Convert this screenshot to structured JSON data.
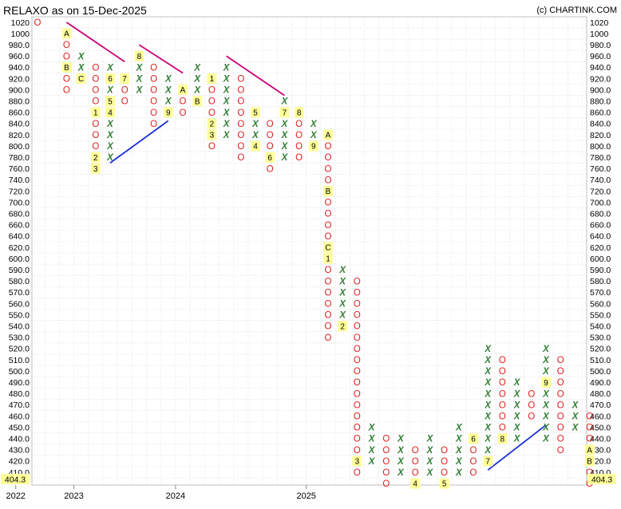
{
  "chart_data": {
    "type": "point-and-figure",
    "title": "RELAXO as on 15-Dec-2025",
    "credit": "(c) CHARTINK.COM",
    "last_price_label": "404.3",
    "y_levels": [
      1020,
      1000,
      980,
      960,
      940,
      920,
      900,
      880,
      860,
      840,
      820,
      800,
      780,
      760,
      740,
      720,
      700,
      680,
      660,
      640,
      620,
      600,
      590,
      580,
      570,
      560,
      550,
      540,
      530,
      520,
      510,
      500,
      490,
      480,
      470,
      460,
      450,
      440,
      430,
      420,
      410
    ],
    "y_labels": [
      "1020",
      "1000",
      "980.0",
      "960.0",
      "940.0",
      "920.0",
      "900.0",
      "880.0",
      "860.0",
      "840.0",
      "820.0",
      "800.0",
      "780.0",
      "760.0",
      "740.0",
      "720.0",
      "700.0",
      "680.0",
      "660.0",
      "640.0",
      "620.0",
      "600.0",
      "590.0",
      "580.0",
      "570.0",
      "560.0",
      "550.0",
      "540.0",
      "530.0",
      "520.0",
      "510.0",
      "500.0",
      "490.0",
      "480.0",
      "470.0",
      "460.0",
      "450.0",
      "440.0",
      "430.0",
      "420.0",
      "410.0"
    ],
    "x_labels": [
      {
        "label": "2022",
        "col": -1
      },
      {
        "label": "2023",
        "col": 3
      },
      {
        "label": "2024",
        "col": 10
      },
      {
        "label": "2025",
        "col": 19
      }
    ],
    "columns": [
      {
        "col": 0,
        "type": "O",
        "cells": [
          [
            1020,
            "O"
          ]
        ]
      },
      {
        "col": 2,
        "type": "O",
        "cells": [
          [
            1000,
            "A"
          ],
          [
            980,
            "O"
          ],
          [
            960,
            "O"
          ],
          [
            940,
            "B"
          ],
          [
            920,
            "O"
          ],
          [
            900,
            "O"
          ]
        ]
      },
      {
        "col": 3,
        "type": "X",
        "cells": [
          [
            940,
            "X"
          ],
          [
            960,
            "X"
          ],
          [
            920,
            "C"
          ]
        ]
      },
      {
        "col": 4,
        "type": "O",
        "cells": [
          [
            940,
            "O"
          ],
          [
            920,
            "O"
          ],
          [
            900,
            "O"
          ],
          [
            880,
            "O"
          ],
          [
            860,
            "1"
          ],
          [
            840,
            "O"
          ],
          [
            820,
            "O"
          ],
          [
            800,
            "O"
          ],
          [
            780,
            "2"
          ],
          [
            760,
            "3"
          ]
        ]
      },
      {
        "col": 5,
        "type": "X",
        "cells": [
          [
            780,
            "X"
          ],
          [
            800,
            "X"
          ],
          [
            820,
            "X"
          ],
          [
            840,
            "X"
          ],
          [
            860,
            "4"
          ],
          [
            880,
            "5"
          ],
          [
            900,
            "X"
          ],
          [
            920,
            "6"
          ],
          [
            940,
            "X"
          ]
        ]
      },
      {
        "col": 6,
        "type": "O",
        "cells": [
          [
            920,
            "7"
          ],
          [
            900,
            "O"
          ],
          [
            880,
            "O"
          ]
        ]
      },
      {
        "col": 7,
        "type": "X",
        "cells": [
          [
            900,
            "X"
          ],
          [
            920,
            "X"
          ],
          [
            940,
            "X"
          ],
          [
            960,
            "8"
          ]
        ]
      },
      {
        "col": 8,
        "type": "O",
        "cells": [
          [
            940,
            "O"
          ],
          [
            920,
            "O"
          ],
          [
            900,
            "O"
          ],
          [
            880,
            "O"
          ],
          [
            860,
            "O"
          ],
          [
            840,
            "O"
          ]
        ]
      },
      {
        "col": 9,
        "type": "X",
        "cells": [
          [
            860,
            "9"
          ],
          [
            880,
            "X"
          ],
          [
            900,
            "X"
          ],
          [
            920,
            "X"
          ]
        ]
      },
      {
        "col": 10,
        "type": "O",
        "cells": [
          [
            900,
            "A"
          ],
          [
            880,
            "O"
          ],
          [
            860,
            "O"
          ]
        ]
      },
      {
        "col": 11,
        "type": "X",
        "cells": [
          [
            880,
            "B"
          ],
          [
            900,
            "X"
          ],
          [
            920,
            "X"
          ],
          [
            940,
            "X"
          ]
        ]
      },
      {
        "col": 12,
        "type": "O",
        "cells": [
          [
            920,
            "1"
          ],
          [
            900,
            "O"
          ],
          [
            880,
            "O"
          ],
          [
            860,
            "O"
          ],
          [
            840,
            "2"
          ],
          [
            820,
            "3"
          ],
          [
            800,
            "O"
          ]
        ]
      },
      {
        "col": 13,
        "type": "X",
        "cells": [
          [
            820,
            "X"
          ],
          [
            840,
            "X"
          ],
          [
            860,
            "X"
          ],
          [
            880,
            "X"
          ],
          [
            900,
            "X"
          ],
          [
            920,
            "X"
          ],
          [
            940,
            "X"
          ]
        ]
      },
      {
        "col": 14,
        "type": "O",
        "cells": [
          [
            920,
            "O"
          ],
          [
            900,
            "O"
          ],
          [
            880,
            "O"
          ],
          [
            860,
            "O"
          ],
          [
            840,
            "O"
          ],
          [
            820,
            "O"
          ],
          [
            800,
            "O"
          ],
          [
            780,
            "O"
          ]
        ]
      },
      {
        "col": 15,
        "type": "X",
        "cells": [
          [
            800,
            "4"
          ],
          [
            820,
            "X"
          ],
          [
            840,
            "X"
          ],
          [
            860,
            "5"
          ]
        ]
      },
      {
        "col": 16,
        "type": "O",
        "cells": [
          [
            840,
            "O"
          ],
          [
            820,
            "O"
          ],
          [
            800,
            "O"
          ],
          [
            780,
            "6"
          ],
          [
            760,
            "O"
          ]
        ]
      },
      {
        "col": 17,
        "type": "X",
        "cells": [
          [
            780,
            "X"
          ],
          [
            800,
            "X"
          ],
          [
            820,
            "X"
          ],
          [
            840,
            "X"
          ],
          [
            860,
            "7"
          ],
          [
            880,
            "X"
          ]
        ]
      },
      {
        "col": 18,
        "type": "O",
        "cells": [
          [
            860,
            "8"
          ],
          [
            840,
            "O"
          ],
          [
            820,
            "O"
          ],
          [
            800,
            "O"
          ],
          [
            780,
            "O"
          ]
        ]
      },
      {
        "col": 19,
        "type": "X",
        "cells": [
          [
            800,
            "9"
          ],
          [
            820,
            "X"
          ],
          [
            840,
            "X"
          ]
        ]
      },
      {
        "col": 20,
        "type": "O",
        "cells": [
          [
            820,
            "A"
          ],
          [
            800,
            "O"
          ],
          [
            780,
            "O"
          ],
          [
            760,
            "O"
          ],
          [
            740,
            "O"
          ],
          [
            720,
            "B"
          ],
          [
            700,
            "O"
          ],
          [
            680,
            "O"
          ],
          [
            660,
            "O"
          ],
          [
            640,
            "O"
          ],
          [
            620,
            "C"
          ],
          [
            600,
            "1"
          ],
          [
            590,
            "O"
          ],
          [
            580,
            "O"
          ],
          [
            570,
            "O"
          ],
          [
            560,
            "O"
          ],
          [
            550,
            "O"
          ],
          [
            540,
            "O"
          ],
          [
            530,
            "O"
          ]
        ]
      },
      {
        "col": 21,
        "type": "X",
        "cells": [
          [
            540,
            "2"
          ],
          [
            550,
            "X"
          ],
          [
            560,
            "X"
          ],
          [
            570,
            "X"
          ],
          [
            580,
            "X"
          ],
          [
            590,
            "X"
          ]
        ]
      },
      {
        "col": 22,
        "type": "O",
        "cells": [
          [
            580,
            "O"
          ],
          [
            570,
            "O"
          ],
          [
            560,
            "O"
          ],
          [
            550,
            "O"
          ],
          [
            540,
            "O"
          ],
          [
            530,
            "O"
          ],
          [
            520,
            "O"
          ],
          [
            510,
            "O"
          ],
          [
            500,
            "O"
          ],
          [
            490,
            "O"
          ],
          [
            480,
            "O"
          ],
          [
            470,
            "O"
          ],
          [
            460,
            "O"
          ],
          [
            450,
            "O"
          ],
          [
            440,
            "O"
          ],
          [
            430,
            "O"
          ],
          [
            420,
            "3"
          ],
          [
            410,
            "O"
          ]
        ]
      },
      {
        "col": 23,
        "type": "X",
        "cells": [
          [
            420,
            "X"
          ],
          [
            430,
            "X"
          ],
          [
            440,
            "X"
          ],
          [
            450,
            "X"
          ]
        ]
      },
      {
        "col": 24,
        "type": "O",
        "cells": [
          [
            440,
            "O"
          ],
          [
            430,
            "O"
          ],
          [
            420,
            "O"
          ],
          [
            410,
            "O"
          ],
          [
            400,
            "O"
          ]
        ]
      },
      {
        "col": 25,
        "type": "X",
        "cells": [
          [
            410,
            "X"
          ],
          [
            420,
            "X"
          ],
          [
            430,
            "X"
          ],
          [
            440,
            "X"
          ]
        ]
      },
      {
        "col": 26,
        "type": "O",
        "cells": [
          [
            430,
            "O"
          ],
          [
            420,
            "O"
          ],
          [
            410,
            "O"
          ],
          [
            400,
            "4"
          ]
        ]
      },
      {
        "col": 27,
        "type": "X",
        "cells": [
          [
            410,
            "X"
          ],
          [
            420,
            "X"
          ],
          [
            430,
            "X"
          ],
          [
            440,
            "X"
          ]
        ]
      },
      {
        "col": 28,
        "type": "O",
        "cells": [
          [
            430,
            "O"
          ],
          [
            420,
            "O"
          ],
          [
            410,
            "O"
          ],
          [
            400,
            "5"
          ]
        ]
      },
      {
        "col": 29,
        "type": "X",
        "cells": [
          [
            410,
            "X"
          ],
          [
            420,
            "X"
          ],
          [
            430,
            "X"
          ],
          [
            440,
            "X"
          ],
          [
            450,
            "X"
          ]
        ]
      },
      {
        "col": 30,
        "type": "O",
        "cells": [
          [
            440,
            "6"
          ],
          [
            430,
            "O"
          ],
          [
            420,
            "O"
          ],
          [
            410,
            "O"
          ]
        ]
      },
      {
        "col": 31,
        "type": "X",
        "cells": [
          [
            420,
            "7"
          ],
          [
            430,
            "X"
          ],
          [
            440,
            "X"
          ],
          [
            450,
            "X"
          ],
          [
            460,
            "X"
          ],
          [
            470,
            "X"
          ],
          [
            480,
            "X"
          ],
          [
            490,
            "X"
          ],
          [
            500,
            "X"
          ],
          [
            510,
            "X"
          ],
          [
            520,
            "X"
          ]
        ]
      },
      {
        "col": 32,
        "type": "O",
        "cells": [
          [
            510,
            "O"
          ],
          [
            500,
            "O"
          ],
          [
            490,
            "O"
          ],
          [
            480,
            "O"
          ],
          [
            470,
            "O"
          ],
          [
            460,
            "O"
          ],
          [
            450,
            "O"
          ],
          [
            440,
            "8"
          ]
        ]
      },
      {
        "col": 33,
        "type": "X",
        "cells": [
          [
            440,
            "X"
          ],
          [
            450,
            "X"
          ],
          [
            460,
            "X"
          ],
          [
            470,
            "X"
          ],
          [
            480,
            "X"
          ],
          [
            490,
            "X"
          ]
        ]
      },
      {
        "col": 34,
        "type": "O",
        "cells": [
          [
            480,
            "O"
          ],
          [
            470,
            "O"
          ],
          [
            460,
            "O"
          ]
        ]
      },
      {
        "col": 35,
        "type": "X",
        "cells": [
          [
            440,
            "X"
          ],
          [
            450,
            "X"
          ],
          [
            460,
            "X"
          ],
          [
            470,
            "X"
          ],
          [
            480,
            "X"
          ],
          [
            490,
            "9"
          ],
          [
            500,
            "X"
          ],
          [
            510,
            "X"
          ],
          [
            520,
            "X"
          ]
        ]
      },
      {
        "col": 36,
        "type": "O",
        "cells": [
          [
            510,
            "O"
          ],
          [
            500,
            "O"
          ],
          [
            490,
            "O"
          ],
          [
            480,
            "O"
          ],
          [
            470,
            "O"
          ],
          [
            460,
            "O"
          ],
          [
            450,
            "O"
          ],
          [
            440,
            "O"
          ],
          [
            430,
            "O"
          ]
        ]
      },
      {
        "col": 37,
        "type": "X",
        "cells": [
          [
            450,
            "X"
          ],
          [
            460,
            "X"
          ],
          [
            470,
            "X"
          ]
        ]
      },
      {
        "col": 38,
        "type": "O",
        "cells": [
          [
            460,
            "O"
          ],
          [
            450,
            "O"
          ],
          [
            440,
            "O"
          ],
          [
            430,
            "A"
          ],
          [
            420,
            "B"
          ],
          [
            410,
            "O"
          ],
          [
            400,
            "O"
          ]
        ]
      }
    ],
    "trendlines": [
      {
        "kind": "resistance",
        "color": "#cc0077",
        "from": [
          2,
          1020
        ],
        "to": [
          6,
          950
        ]
      },
      {
        "kind": "resistance",
        "color": "#cc0077",
        "from": [
          7,
          980
        ],
        "to": [
          10,
          930
        ]
      },
      {
        "kind": "resistance",
        "color": "#cc0077",
        "from": [
          13,
          960
        ],
        "to": [
          17,
          890
        ]
      },
      {
        "kind": "support",
        "color": "#1a2ed8",
        "from": [
          5,
          770
        ],
        "to": [
          9,
          845
        ]
      },
      {
        "kind": "support",
        "color": "#1a2ed8",
        "from": [
          31,
          412
        ],
        "to": [
          35,
          452
        ]
      }
    ]
  }
}
